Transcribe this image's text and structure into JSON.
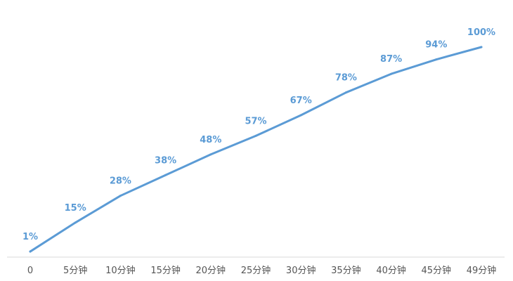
{
  "chart_data": {
    "type": "line",
    "categories": [
      "0",
      "5分钟",
      "10分钟",
      "15分钟",
      "20分钟",
      "25分钟",
      "30分钟",
      "35分钟",
      "40分钟",
      "45分钟",
      "49分钟"
    ],
    "series": [
      {
        "values": [
          1,
          15,
          28,
          38,
          48,
          57,
          67,
          78,
          87,
          94,
          100
        ],
        "data_labels": [
          "1%",
          "15%",
          "28%",
          "38%",
          "48%",
          "57%",
          "67%",
          "78%",
          "87%",
          "94%",
          "100%"
        ]
      }
    ],
    "ylim": [
      0,
      100
    ],
    "grid": false,
    "drop_lines": true,
    "colors": {
      "line": "#5b9bd5",
      "label": "#5b9bd5",
      "axis": "#d9d9d9",
      "tick": "#555555"
    }
  }
}
